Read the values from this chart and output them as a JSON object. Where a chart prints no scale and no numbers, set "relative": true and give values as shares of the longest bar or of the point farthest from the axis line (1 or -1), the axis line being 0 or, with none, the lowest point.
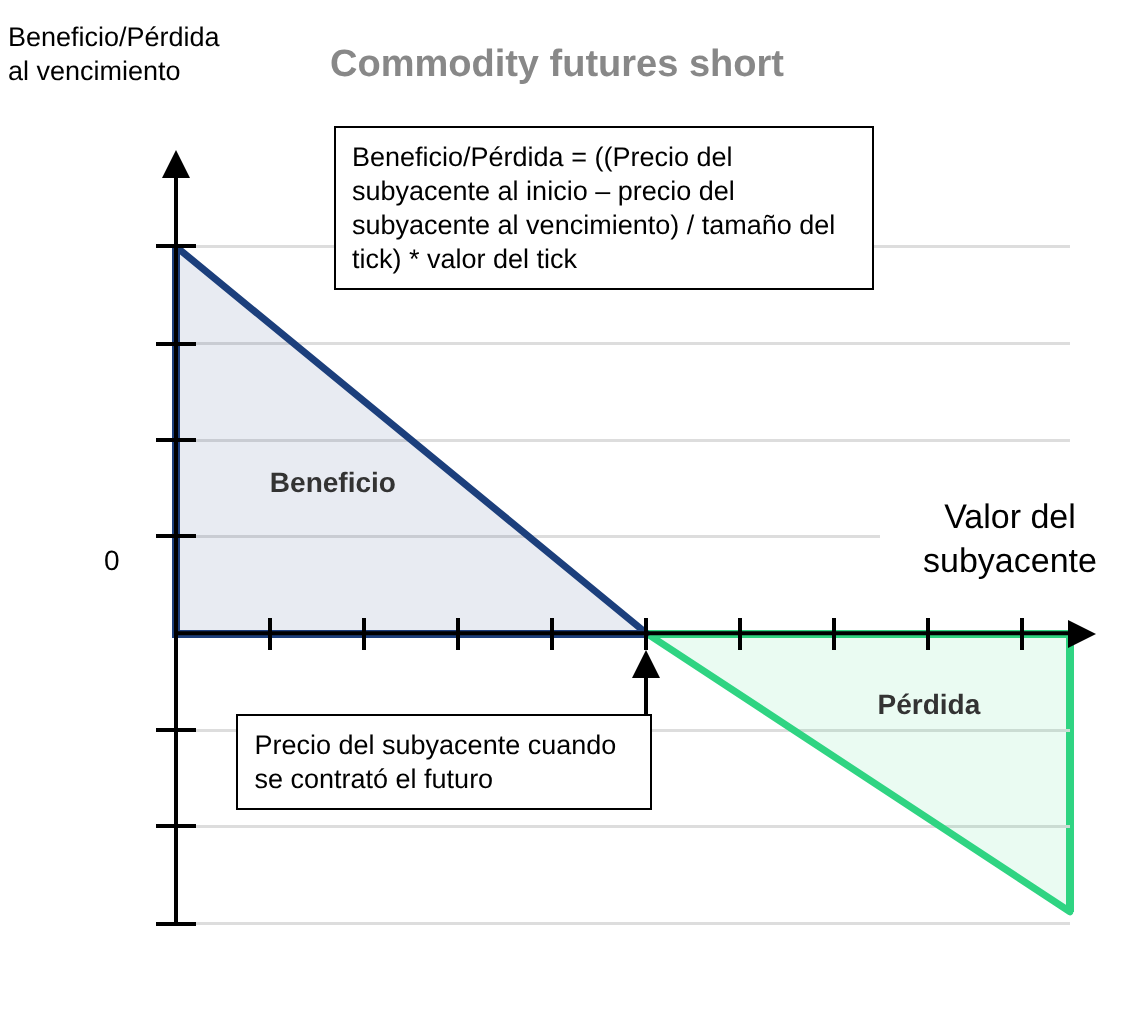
{
  "chart_data": {
    "type": "area",
    "title": "Commodity futures short",
    "xlabel": "Valor del subyacente",
    "relative": true,
    "grid": "y",
    "categories": [
      null,
      null,
      null,
      null,
      null,
      null,
      null,
      null,
      null,
      null,
      null,
      null,
      null,
      null,
      null,
      null,
      null,
      null,
      null,
      null
    ],
    "series": [
      {
        "name": "Beneficio",
        "color": "#1c3f7c",
        "values": [
          1,
          null,
          null,
          null,
          null,
          null,
          null,
          null,
          null,
          null,
          0,
          null,
          null,
          null,
          null,
          null,
          null,
          null,
          null,
          null
        ]
      },
      {
        "name": "Pérdida",
        "color": "#2fd482",
        "values": [
          null,
          null,
          null,
          null,
          null,
          null,
          null,
          null,
          null,
          null,
          0,
          null,
          null,
          null,
          null,
          null,
          null,
          null,
          null,
          -0.72
        ]
      }
    ],
    "annotations": [
      "Beneficio/Pérdida al vencimiento",
      "Beneficio/Pérdida = ((Precio del subyacente al inicio – precio del subyacente al vencimiento) / tamaño del tick) * valor del tick",
      "0",
      "Precio del subyacente cuando se contrató el futuro"
    ]
  }
}
